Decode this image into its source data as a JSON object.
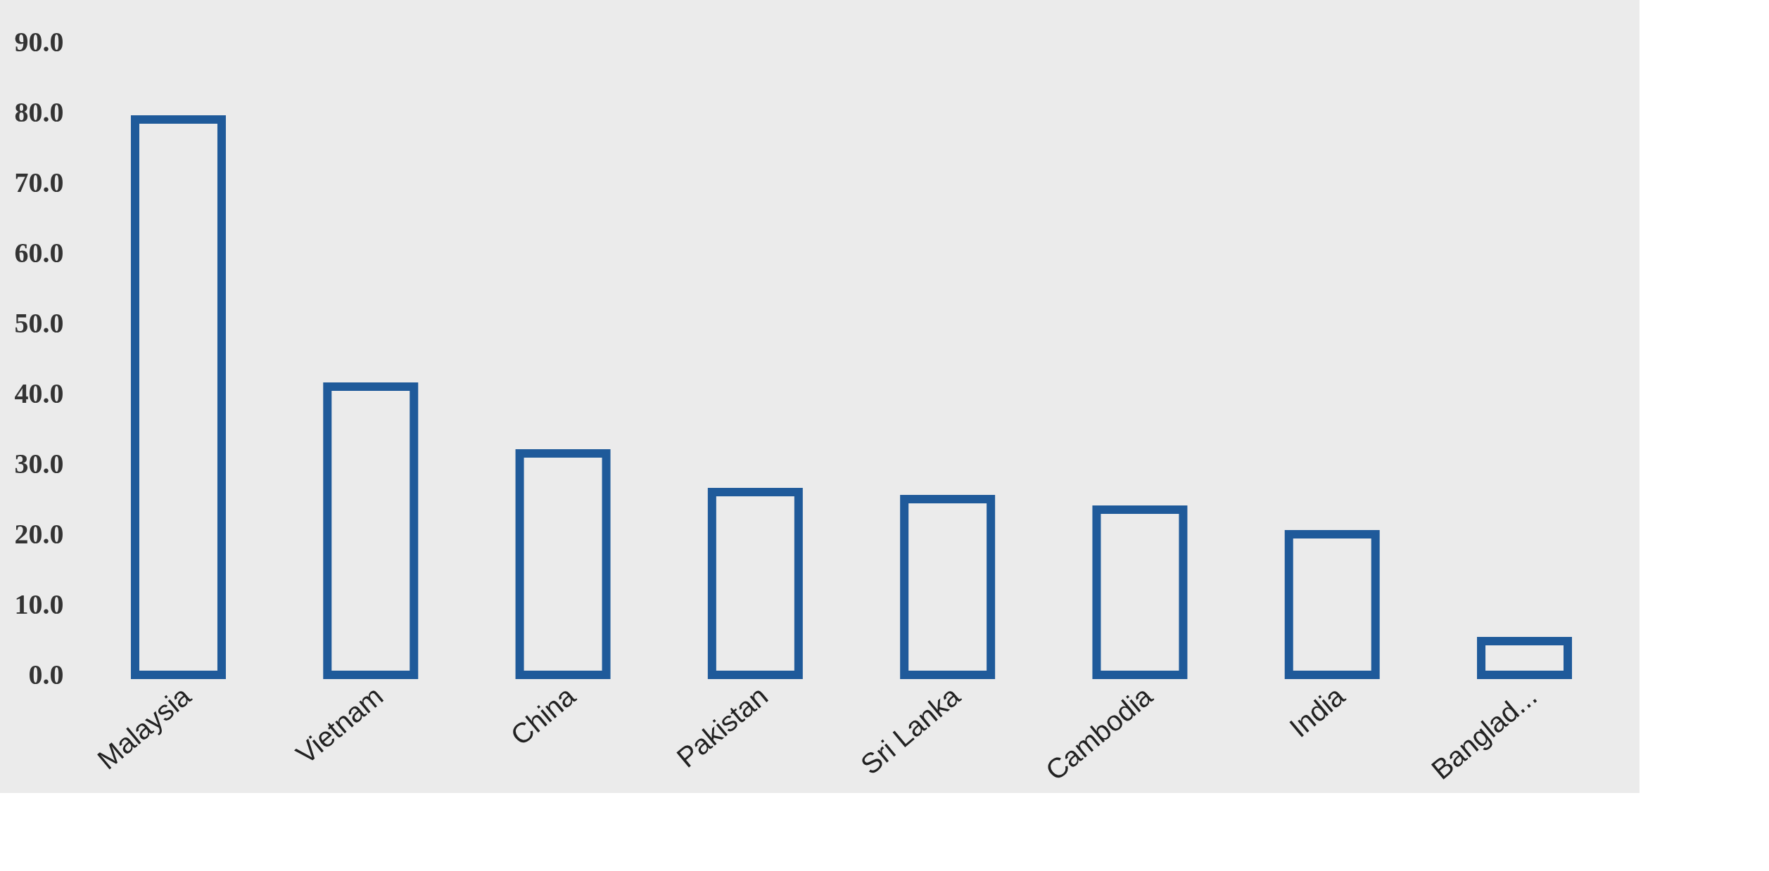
{
  "chart_data": {
    "type": "bar",
    "categories": [
      "Malaysia",
      "Vietnam",
      "China",
      "Pakistan",
      "Sri Lanka",
      "Cambodia",
      "India",
      "Banglad..."
    ],
    "values": [
      79,
      41,
      31.5,
      26,
      25,
      23.5,
      20,
      4.8
    ],
    "color": "#1f5a9a",
    "ylim": [
      0,
      90
    ],
    "yticks": [
      {
        "value": 0,
        "label": "0.0"
      },
      {
        "value": 10,
        "label": "10.0"
      },
      {
        "value": 20,
        "label": "20.0"
      },
      {
        "value": 30,
        "label": "30.0"
      },
      {
        "value": 40,
        "label": "40.0"
      },
      {
        "value": 50,
        "label": "50.0"
      },
      {
        "value": 60,
        "label": "60.0"
      },
      {
        "value": 70,
        "label": "70.0"
      },
      {
        "value": 80,
        "label": "80.0"
      },
      {
        "value": 90,
        "label": "90.0"
      }
    ],
    "grid": false
  }
}
